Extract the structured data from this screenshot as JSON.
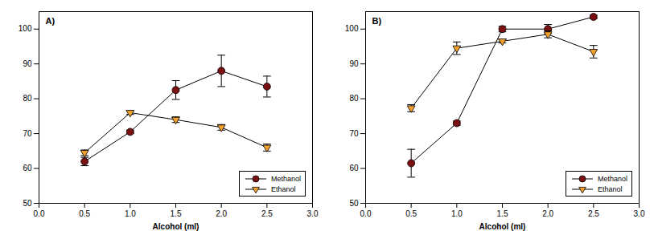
{
  "chart_data": [
    {
      "type": "line",
      "title": "A)",
      "x_label": "Alcohol (ml)",
      "x": [
        0.5,
        1.0,
        1.5,
        2.0,
        2.5
      ],
      "xlim": [
        0,
        3
      ],
      "xticks": [
        {
          "value": 0,
          "label": "0.0"
        },
        {
          "value": 0.5,
          "label": "0.5"
        },
        {
          "value": 1,
          "label": "1.0"
        },
        {
          "value": 1.5,
          "label": "1.5"
        },
        {
          "value": 2,
          "label": "2.0"
        },
        {
          "value": 2.5,
          "label": "2.5"
        },
        {
          "value": 3,
          "label": "3.0"
        }
      ],
      "ylim": [
        50,
        105
      ],
      "yticks": [
        50,
        60,
        70,
        80,
        90,
        100
      ],
      "grid": false,
      "legend": "lower right",
      "series": [
        {
          "name": "Methanol",
          "color": "#7a1012",
          "marker": "circle",
          "line_style": "solid",
          "values": [
            62,
            70.5,
            82.5,
            88,
            83.5
          ],
          "errors": [
            1.2,
            0.5,
            2.7,
            4.5,
            3
          ]
        },
        {
          "name": "Ethanol",
          "color": "#f2a02e",
          "marker": "triangle-down",
          "line_style": "solid",
          "values": [
            64.5,
            76,
            74,
            71.8,
            66
          ],
          "errors": [
            0.8,
            0.5,
            0.8,
            0.8,
            1
          ]
        }
      ]
    },
    {
      "type": "line",
      "title": "B)",
      "x_label": "Alcohol (ml)",
      "x": [
        0.5,
        1.0,
        1.5,
        2.0,
        2.5
      ],
      "xlim": [
        0,
        3
      ],
      "xticks": [
        {
          "value": 0,
          "label": "0.0"
        },
        {
          "value": 0.5,
          "label": "0.5"
        },
        {
          "value": 1,
          "label": "1.0"
        },
        {
          "value": 1.5,
          "label": "1.5"
        },
        {
          "value": 2,
          "label": "2.0"
        },
        {
          "value": 2.5,
          "label": "2.5"
        },
        {
          "value": 3,
          "label": "3.0"
        }
      ],
      "ylim": [
        50,
        105
      ],
      "yticks": [
        50,
        60,
        70,
        80,
        90,
        100
      ],
      "grid": false,
      "legend": "lower right",
      "series": [
        {
          "name": "Methanol",
          "color": "#7a1012",
          "marker": "circle",
          "line_style": "solid",
          "values": [
            61.5,
            73,
            100,
            100,
            103.5
          ],
          "errors": [
            4,
            0.6,
            0.8,
            1.3,
            0.5
          ]
        },
        {
          "name": "Ethanol",
          "color": "#f2a02e",
          "marker": "triangle-down",
          "line_style": "solid",
          "values": [
            77.3,
            94.5,
            96.5,
            98.5,
            93.5
          ],
          "errors": [
            1,
            1.8,
            0.5,
            1,
            1.8
          ]
        }
      ]
    }
  ]
}
